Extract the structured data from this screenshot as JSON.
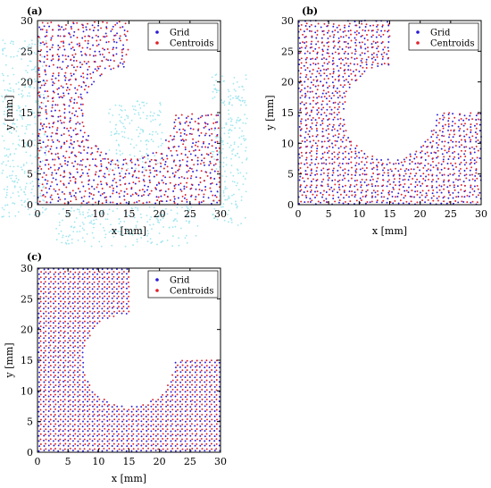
{
  "colors": {
    "grid": "#2a1bd6",
    "centroids": "#e0202a",
    "cloud": "#9fe6f0",
    "axis": "#000000"
  },
  "chart_data": [
    {
      "panel": "(a)",
      "type": "scatter",
      "xlabel": "x [mm]",
      "ylabel": "y [mm]",
      "xlim": [
        0,
        30
      ],
      "ylim": [
        0,
        30
      ],
      "xticks": [
        0,
        5,
        10,
        15,
        20,
        25,
        30
      ],
      "yticks": [
        0,
        5,
        10,
        15,
        20,
        25,
        30
      ],
      "legend": {
        "position": "top-right",
        "entries": [
          "Grid",
          "Centroids"
        ]
      },
      "specimen": {
        "notch_top_x": 15,
        "notch_right_y": 15,
        "notch_center": [
          15,
          15
        ],
        "notch_radius": 7.5
      },
      "series": [
        {
          "name": "Grid",
          "pattern": "grid",
          "spacing": 1.0,
          "jitter": 0.35
        },
        {
          "name": "Centroids",
          "pattern": "centroids",
          "spacing": 1.0,
          "jitter": 0.35
        }
      ]
    },
    {
      "panel": "(b)",
      "type": "scatter",
      "xlabel": "x [mm]",
      "ylabel": "y [mm]",
      "xlim": [
        0,
        30
      ],
      "ylim": [
        0,
        30
      ],
      "xticks": [
        0,
        5,
        10,
        15,
        20,
        25,
        30
      ],
      "yticks": [
        0,
        5,
        10,
        15,
        20,
        25,
        30
      ],
      "legend": {
        "position": "top-right",
        "entries": [
          "Grid",
          "Centroids"
        ]
      },
      "specimen": {
        "notch_top_x": 15,
        "notch_right_y": 15,
        "notch_center": [
          15,
          15
        ],
        "notch_radius": 7.5
      },
      "series": [
        {
          "name": "Grid",
          "pattern": "grid",
          "spacing": 0.9,
          "jitter": 0.2
        },
        {
          "name": "Centroids",
          "pattern": "centroids",
          "spacing": 0.9,
          "jitter": 0.2
        }
      ]
    },
    {
      "panel": "(c)",
      "type": "scatter",
      "xlabel": "x [mm]",
      "ylabel": "y [mm]",
      "xlim": [
        0,
        30
      ],
      "ylim": [
        0,
        30
      ],
      "xticks": [
        0,
        5,
        10,
        15,
        20,
        25,
        30
      ],
      "yticks": [
        0,
        5,
        10,
        15,
        20,
        25,
        30
      ],
      "legend": {
        "position": "top-right",
        "entries": [
          "Grid",
          "Centroids"
        ]
      },
      "specimen": {
        "notch_top_x": 15,
        "notch_right_y": 15,
        "notch_center": [
          15,
          15
        ],
        "notch_radius": 7.5
      },
      "series": [
        {
          "name": "Grid",
          "pattern": "grid",
          "spacing": 0.8,
          "jitter": 0.06
        },
        {
          "name": "Centroids",
          "pattern": "centroids",
          "spacing": 0.8,
          "jitter": 0.06
        }
      ]
    }
  ]
}
